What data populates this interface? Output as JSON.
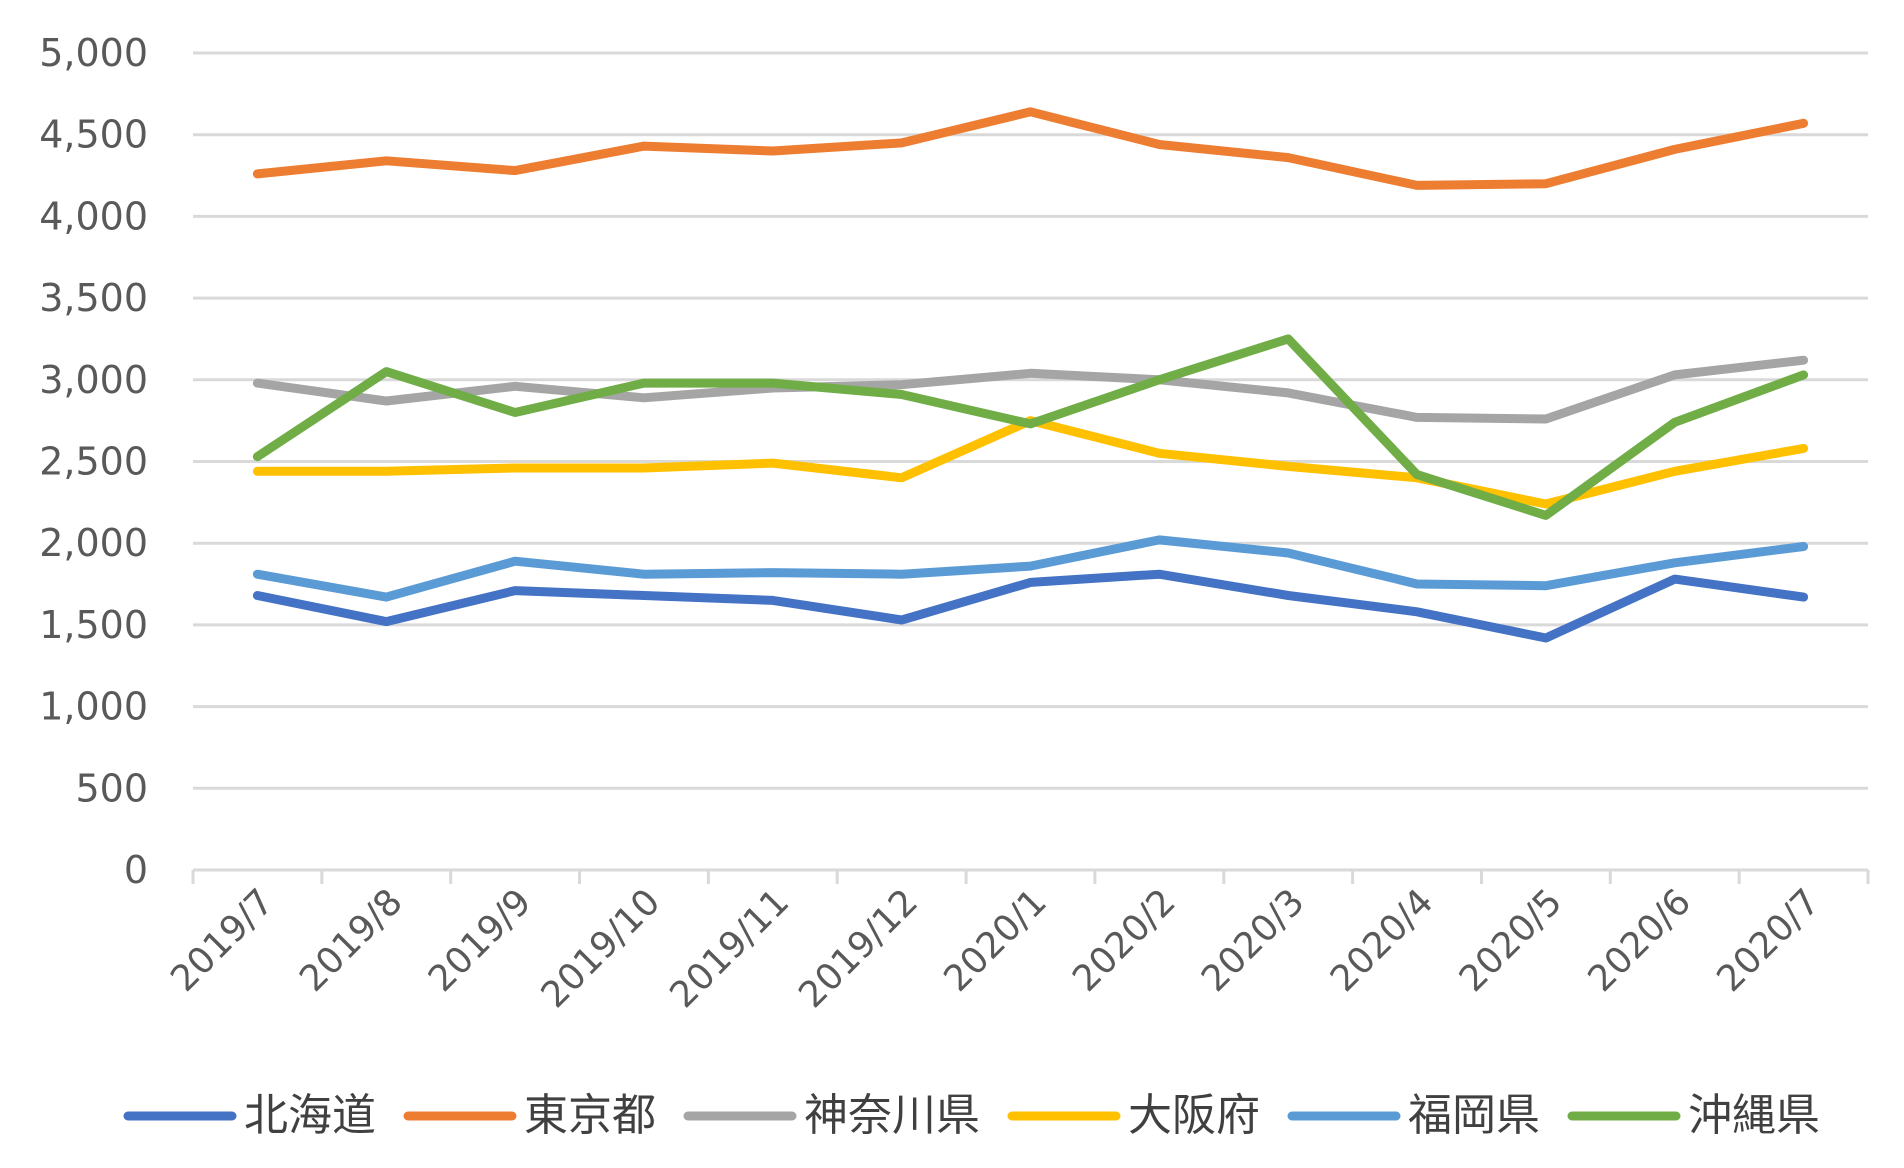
{
  "chart_data": {
    "type": "line",
    "title": "",
    "xlabel": "",
    "ylabel": "",
    "ylim": [
      0,
      5000
    ],
    "yticks": [
      0,
      500,
      1000,
      1500,
      2000,
      2500,
      3000,
      3500,
      4000,
      4500,
      5000
    ],
    "ytick_labels": [
      "0",
      "500",
      "1,000",
      "1,500",
      "2,000",
      "2,500",
      "3,000",
      "3,500",
      "4,000",
      "4,500",
      "5,000"
    ],
    "grid": true,
    "legend": "bottom",
    "categories": [
      "2019/7",
      "2019/8",
      "2019/9",
      "2019/10",
      "2019/11",
      "2019/12",
      "2020/1",
      "2020/2",
      "2020/3",
      "2020/4",
      "2020/5",
      "2020/6",
      "2020/7"
    ],
    "series": [
      {
        "name": "北海道",
        "color": "#4472c4",
        "values": [
          1680,
          1520,
          1710,
          1680,
          1650,
          1530,
          1760,
          1810,
          1680,
          1580,
          1420,
          1780,
          1670
        ]
      },
      {
        "name": "東京都",
        "color": "#ed7d31",
        "values": [
          4260,
          4340,
          4280,
          4430,
          4400,
          4450,
          4640,
          4440,
          4360,
          4190,
          4200,
          4410,
          4570
        ]
      },
      {
        "name": "神奈川県",
        "color": "#a5a5a5",
        "values": [
          2980,
          2870,
          2960,
          2890,
          2950,
          2970,
          3040,
          3000,
          2920,
          2770,
          2760,
          3030,
          3120
        ]
      },
      {
        "name": "大阪府",
        "color": "#ffc000",
        "values": [
          2440,
          2440,
          2460,
          2460,
          2490,
          2400,
          2750,
          2550,
          2470,
          2400,
          2240,
          2440,
          2580
        ]
      },
      {
        "name": "福岡県",
        "color": "#5b9bd5",
        "values": [
          1810,
          1670,
          1890,
          1810,
          1820,
          1810,
          1860,
          2020,
          1940,
          1750,
          1740,
          1880,
          1980
        ]
      },
      {
        "name": "沖縄県",
        "color": "#70ad47",
        "values": [
          2530,
          3050,
          2800,
          2980,
          2980,
          2910,
          2730,
          3000,
          3250,
          2420,
          2170,
          2740,
          3030
        ]
      }
    ]
  }
}
